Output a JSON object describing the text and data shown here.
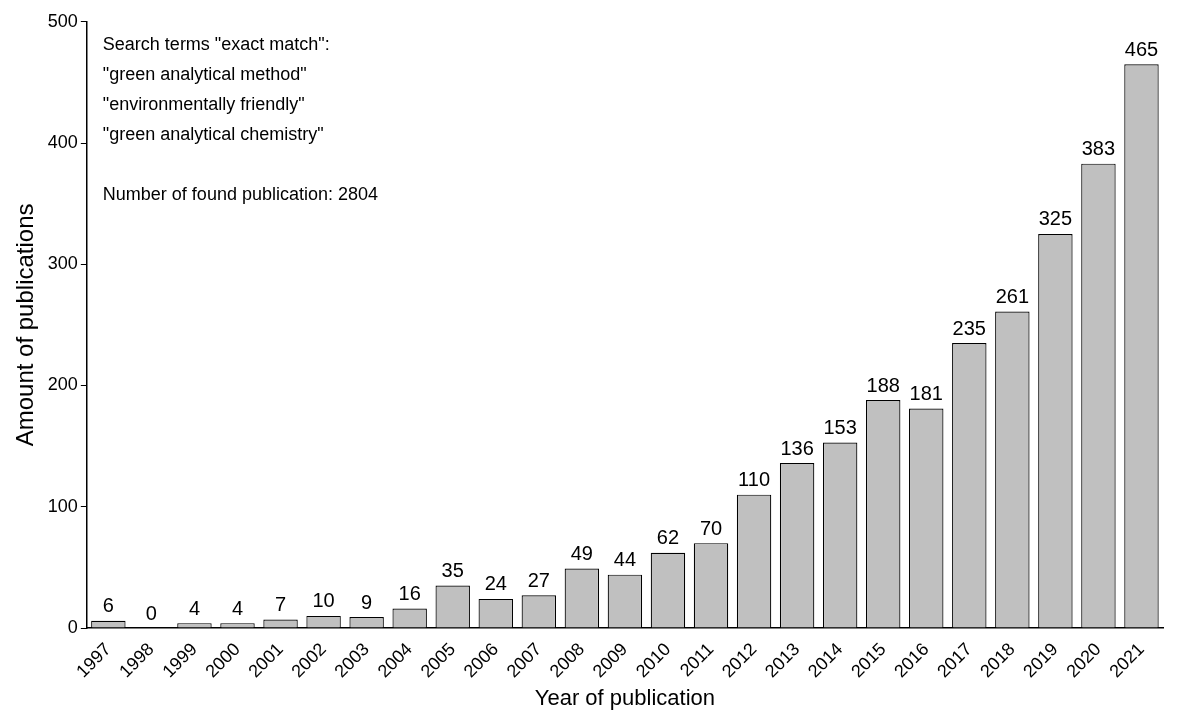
{
  "chart_data": {
    "type": "bar",
    "xlabel": "Year of publication",
    "ylabel": "Amount of publications",
    "categories": [
      "1997",
      "1998",
      "1999",
      "2000",
      "2001",
      "2002",
      "2003",
      "2004",
      "2005",
      "2006",
      "2007",
      "2008",
      "2009",
      "2010",
      "2011",
      "2012",
      "2013",
      "2014",
      "2015",
      "2016",
      "2017",
      "2018",
      "2019",
      "2020",
      "2021"
    ],
    "values": [
      6,
      0,
      4,
      4,
      7,
      10,
      9,
      16,
      35,
      24,
      27,
      49,
      44,
      62,
      70,
      110,
      136,
      153,
      188,
      181,
      235,
      261,
      325,
      383,
      465
    ],
    "color": "#c0c0c0",
    "ylim": [
      0,
      500
    ],
    "yticks": [
      0,
      100,
      200,
      300,
      400,
      500
    ],
    "grid": false,
    "legend": false,
    "data_labels": true,
    "annotations": [
      "Search terms \"exact match\":",
      "\"green analytical method\"",
      "\"environmentally friendly\"",
      "\"green analytical chemistry\"",
      "Number of found publication: 2804"
    ]
  }
}
